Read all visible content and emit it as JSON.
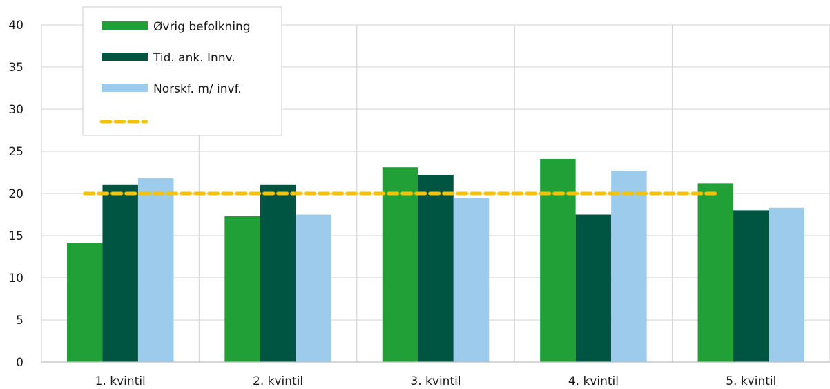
{
  "chart_data": {
    "type": "bar",
    "categories": [
      "1. kvintil",
      "2. kvintil",
      "3. kvintil",
      "4. kvintil",
      "5. kvintil"
    ],
    "series": [
      {
        "name": "Øvrig befolkning",
        "color": "#22a038",
        "values": [
          14.1,
          17.3,
          23.1,
          24.1,
          21.2
        ]
      },
      {
        "name": "Tid. ank. Innv.",
        "color": "#005442",
        "values": [
          21.0,
          21.0,
          22.2,
          17.5,
          18.0
        ]
      },
      {
        "name": "Norskf. m/ invf.",
        "color": "#9ccbec",
        "values": [
          21.8,
          17.5,
          19.5,
          22.7,
          18.3
        ]
      }
    ],
    "reference_line": {
      "value": 20,
      "color": "#f7c300",
      "style": "dashed",
      "label": ""
    },
    "ylim": [
      0,
      40
    ],
    "yticks": [
      0,
      5,
      10,
      15,
      20,
      25,
      30,
      35,
      40
    ],
    "title": "",
    "xlabel": "",
    "ylabel": "",
    "grid": true,
    "legend": "top-left"
  }
}
